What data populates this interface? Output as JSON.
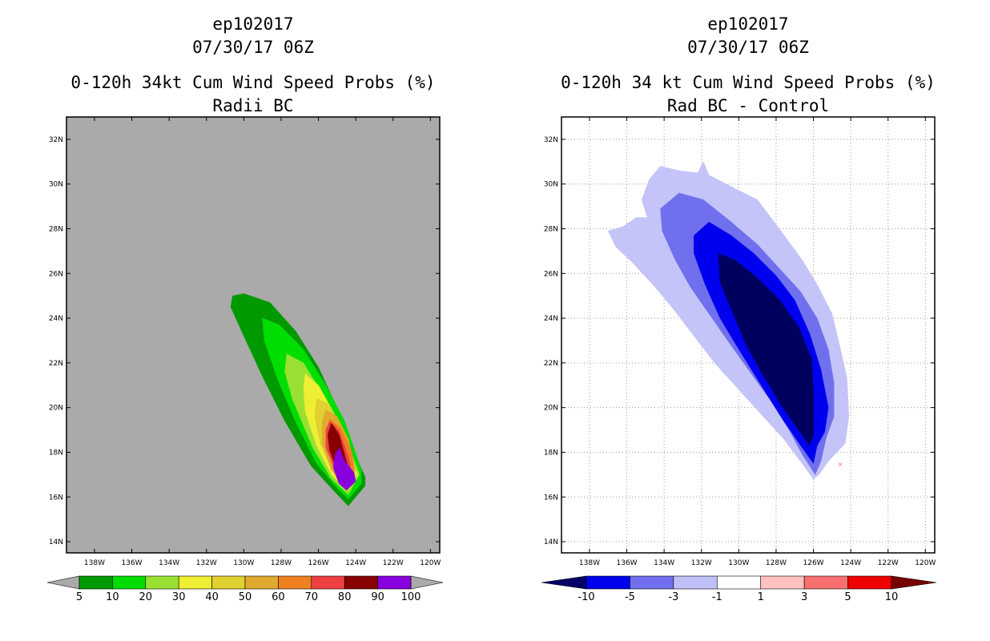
{
  "chart_data": [
    {
      "type": "heatmap",
      "storm_id": "ep102017",
      "datetime": "07/30/17 06Z",
      "title": "0-120h 34kt Cum Wind Speed Probs (%)",
      "subtitle": "Radii BC",
      "background_color": "#aaaaaa",
      "xlim": [
        -139.5,
        -119.5
      ],
      "ylim": [
        13.5,
        33.0
      ],
      "x_ticks": [
        -138,
        -136,
        -134,
        -132,
        -130,
        -128,
        -126,
        -124,
        -122,
        -120
      ],
      "x_tick_labels": [
        "138W",
        "136W",
        "134W",
        "132W",
        "130W",
        "128W",
        "126W",
        "124W",
        "122W",
        "120W"
      ],
      "y_ticks": [
        14,
        16,
        18,
        20,
        22,
        24,
        26,
        28,
        30,
        32
      ],
      "y_tick_labels": [
        "14N",
        "16N",
        "18N",
        "20N",
        "22N",
        "24N",
        "26N",
        "28N",
        "30N",
        "32N"
      ],
      "grid": false,
      "colorbar": {
        "labels": [
          "5",
          "10",
          "20",
          "30",
          "40",
          "50",
          "60",
          "70",
          "80",
          "90",
          "100"
        ],
        "colors": [
          "#009900",
          "#00dd00",
          "#99e033",
          "#eeee33",
          "#e0d030",
          "#e0aa30",
          "#ee8020",
          "#ee4040",
          "#880000",
          "#8800dd"
        ],
        "low_triangle_color": "#aaaaaa",
        "high_triangle_color": "#aaaaaa"
      },
      "contours": [
        {
          "level": 5,
          "color": "#009900",
          "points": [
            [
              -130.6,
              25.0
            ],
            [
              -130.0,
              25.1
            ],
            [
              -128.6,
              24.7
            ],
            [
              -127.2,
              23.4
            ],
            [
              -126.0,
              21.8
            ],
            [
              -125.0,
              20.0
            ],
            [
              -124.1,
              18.0
            ],
            [
              -123.5,
              16.9
            ],
            [
              -123.5,
              16.5
            ],
            [
              -124.4,
              15.6
            ],
            [
              -125.2,
              16.3
            ],
            [
              -126.4,
              17.4
            ],
            [
              -127.8,
              19.4
            ],
            [
              -129.0,
              21.4
            ],
            [
              -130.0,
              23.2
            ],
            [
              -130.7,
              24.5
            ]
          ]
        },
        {
          "level": 10,
          "color": "#00dd00",
          "points": [
            [
              -129.0,
              24.0
            ],
            [
              -128.1,
              23.7
            ],
            [
              -126.8,
              22.6
            ],
            [
              -125.6,
              21.0
            ],
            [
              -124.6,
              19.4
            ],
            [
              -123.7,
              17.2
            ],
            [
              -123.7,
              16.6
            ],
            [
              -124.4,
              15.9
            ],
            [
              -125.0,
              16.4
            ],
            [
              -126.1,
              17.5
            ],
            [
              -127.3,
              19.5
            ],
            [
              -128.2,
              21.3
            ],
            [
              -128.9,
              23.0
            ]
          ]
        },
        {
          "level": 20,
          "color": "#99e033",
          "points": [
            [
              -127.7,
              22.4
            ],
            [
              -126.8,
              22.0
            ],
            [
              -125.7,
              20.5
            ],
            [
              -124.6,
              18.8
            ],
            [
              -123.8,
              17.0
            ],
            [
              -124.4,
              16.1
            ],
            [
              -125.3,
              16.8
            ],
            [
              -126.3,
              18.2
            ],
            [
              -127.4,
              20.4
            ],
            [
              -127.8,
              21.6
            ]
          ]
        },
        {
          "level": 30,
          "color": "#eeee33",
          "points": [
            [
              -126.7,
              21.5
            ],
            [
              -126.0,
              21.0
            ],
            [
              -125.2,
              19.8
            ],
            [
              -124.4,
              18.4
            ],
            [
              -123.9,
              17.0
            ],
            [
              -124.5,
              16.3
            ],
            [
              -125.3,
              17.0
            ],
            [
              -126.1,
              18.3
            ],
            [
              -126.7,
              19.8
            ],
            [
              -126.8,
              20.9
            ]
          ]
        },
        {
          "level": 40,
          "color": "#e0d030",
          "points": [
            [
              -126.1,
              20.4
            ],
            [
              -125.5,
              20.2
            ],
            [
              -124.8,
              19.2
            ],
            [
              -124.1,
              17.6
            ],
            [
              -124.0,
              16.9
            ],
            [
              -124.6,
              16.4
            ],
            [
              -125.3,
              17.2
            ],
            [
              -125.9,
              18.4
            ],
            [
              -126.2,
              19.6
            ]
          ]
        },
        {
          "level": 50,
          "color": "#e0aa30",
          "points": [
            [
              -125.6,
              19.9
            ],
            [
              -125.0,
              19.6
            ],
            [
              -124.4,
              18.6
            ],
            [
              -124.0,
              17.2
            ],
            [
              -124.6,
              16.5
            ],
            [
              -125.3,
              17.2
            ],
            [
              -125.8,
              18.4
            ],
            [
              -125.8,
              19.4
            ]
          ]
        },
        {
          "level": 60,
          "color": "#ee8020",
          "points": [
            [
              -125.4,
              19.5
            ],
            [
              -124.8,
              19.1
            ],
            [
              -124.2,
              18.0
            ],
            [
              -124.1,
              17.0
            ],
            [
              -124.6,
              16.6
            ],
            [
              -125.2,
              17.3
            ],
            [
              -125.6,
              18.4
            ]
          ]
        },
        {
          "level": 70,
          "color": "#ee4040",
          "points": [
            [
              -125.4,
              19.4
            ],
            [
              -124.9,
              19.0
            ],
            [
              -124.4,
              17.8
            ],
            [
              -124.2,
              17.0
            ],
            [
              -124.6,
              16.6
            ],
            [
              -125.1,
              17.2
            ],
            [
              -125.6,
              18.2
            ],
            [
              -125.6,
              19.0
            ]
          ]
        },
        {
          "level": 80,
          "color": "#880000",
          "points": [
            [
              -125.3,
              19.3
            ],
            [
              -124.9,
              18.8
            ],
            [
              -124.6,
              17.9
            ],
            [
              -124.3,
              17.0
            ],
            [
              -124.6,
              16.7
            ],
            [
              -125.0,
              17.2
            ],
            [
              -125.4,
              18.1
            ],
            [
              -125.5,
              18.8
            ]
          ]
        },
        {
          "level": 90,
          "color": "#8800dd",
          "points": [
            [
              -124.9,
              18.2
            ],
            [
              -124.6,
              17.6
            ],
            [
              -124.1,
              17.1
            ],
            [
              -124.0,
              16.7
            ],
            [
              -124.5,
              16.3
            ],
            [
              -124.9,
              16.6
            ],
            [
              -125.2,
              17.3
            ],
            [
              -125.1,
              17.9
            ]
          ]
        }
      ]
    },
    {
      "type": "heatmap",
      "storm_id": "ep102017",
      "datetime": "07/30/17 06Z",
      "title": "0-120h 34 kt Cum Wind Speed Probs (%)",
      "subtitle": "Rad BC - Control",
      "background_color": "#ffffff",
      "xlim": [
        -139.5,
        -119.5
      ],
      "ylim": [
        13.5,
        33.0
      ],
      "x_ticks": [
        -138,
        -136,
        -134,
        -132,
        -130,
        -128,
        -126,
        -124,
        -122,
        -120
      ],
      "x_tick_labels": [
        "138W",
        "136W",
        "134W",
        "132W",
        "130W",
        "128W",
        "126W",
        "124W",
        "122W",
        "120W"
      ],
      "y_ticks": [
        14,
        16,
        18,
        20,
        22,
        24,
        26,
        28,
        30,
        32
      ],
      "y_tick_labels": [
        "14N",
        "16N",
        "18N",
        "20N",
        "22N",
        "24N",
        "26N",
        "28N",
        "30N",
        "32N"
      ],
      "grid": true,
      "colorbar": {
        "labels": [
          "-10",
          "-5",
          "-3",
          "-1",
          "1",
          "3",
          "5",
          "10"
        ],
        "colors": [
          "#0000ee",
          "#7070ee",
          "#c0c0f8",
          "#ffffff",
          "#ffc0c0",
          "#f87070",
          "#ee0000"
        ],
        "low_triangle_color": "#000066",
        "high_triangle_color": "#770000"
      },
      "contours": [
        {
          "level": -1,
          "color": "#c4c4f8",
          "points": [
            [
              -137.0,
              27.9
            ],
            [
              -136.2,
              28.1
            ],
            [
              -135.5,
              28.5
            ],
            [
              -134.9,
              28.5
            ],
            [
              -135.2,
              29.3
            ],
            [
              -134.8,
              30.2
            ],
            [
              -134.2,
              30.8
            ],
            [
              -133.2,
              30.6
            ],
            [
              -132.2,
              30.5
            ],
            [
              -131.9,
              31.0
            ],
            [
              -131.6,
              30.4
            ],
            [
              -130.2,
              29.8
            ],
            [
              -129.0,
              29.3
            ],
            [
              -128.1,
              28.3
            ],
            [
              -127.3,
              27.4
            ],
            [
              -126.6,
              26.6
            ],
            [
              -125.8,
              25.5
            ],
            [
              -125.0,
              24.2
            ],
            [
              -124.6,
              22.8
            ],
            [
              -124.2,
              21.3
            ],
            [
              -124.1,
              19.6
            ],
            [
              -124.3,
              18.4
            ],
            [
              -125.2,
              17.6
            ],
            [
              -125.7,
              17.0
            ],
            [
              -126.0,
              16.8
            ],
            [
              -126.7,
              17.6
            ],
            [
              -127.6,
              18.6
            ],
            [
              -128.8,
              19.7
            ],
            [
              -130.0,
              20.8
            ],
            [
              -131.3,
              22.0
            ],
            [
              -132.4,
              23.2
            ],
            [
              -133.5,
              24.4
            ],
            [
              -134.5,
              25.4
            ],
            [
              -135.6,
              26.4
            ],
            [
              -136.6,
              27.2
            ]
          ]
        },
        {
          "level": -3,
          "color": "#7070ee",
          "points": [
            [
              -134.2,
              28.9
            ],
            [
              -133.2,
              29.6
            ],
            [
              -131.9,
              29.3
            ],
            [
              -130.4,
              28.3
            ],
            [
              -129.0,
              27.3
            ],
            [
              -127.8,
              26.2
            ],
            [
              -126.7,
              25.2
            ],
            [
              -125.8,
              24.0
            ],
            [
              -125.2,
              22.6
            ],
            [
              -124.9,
              21.1
            ],
            [
              -124.9,
              19.6
            ],
            [
              -125.3,
              18.7
            ],
            [
              -125.6,
              17.6
            ],
            [
              -125.9,
              17.0
            ],
            [
              -126.6,
              17.9
            ],
            [
              -127.3,
              19.0
            ],
            [
              -128.2,
              20.2
            ],
            [
              -129.4,
              21.6
            ],
            [
              -130.6,
              23.0
            ],
            [
              -131.6,
              24.2
            ],
            [
              -132.6,
              25.4
            ],
            [
              -133.4,
              26.6
            ],
            [
              -134.1,
              27.9
            ]
          ]
        },
        {
          "level": -5,
          "color": "#0000ee",
          "points": [
            [
              -132.4,
              27.7
            ],
            [
              -131.6,
              28.3
            ],
            [
              -130.4,
              27.7
            ],
            [
              -129.2,
              26.9
            ],
            [
              -128.0,
              25.9
            ],
            [
              -127.0,
              24.8
            ],
            [
              -126.2,
              23.3
            ],
            [
              -125.6,
              21.7
            ],
            [
              -125.2,
              20.0
            ],
            [
              -125.4,
              18.9
            ],
            [
              -125.8,
              18.3
            ],
            [
              -126.0,
              17.5
            ],
            [
              -126.6,
              18.2
            ],
            [
              -127.6,
              19.4
            ],
            [
              -128.8,
              21.0
            ],
            [
              -130.0,
              22.6
            ],
            [
              -131.0,
              24.0
            ],
            [
              -131.8,
              25.5
            ],
            [
              -132.4,
              26.9
            ]
          ]
        },
        {
          "level": -10,
          "color": "#00005e",
          "points": [
            [
              -131.1,
              26.9
            ],
            [
              -130.2,
              26.6
            ],
            [
              -129.0,
              25.8
            ],
            [
              -127.8,
              24.8
            ],
            [
              -126.8,
              23.6
            ],
            [
              -126.1,
              22.2
            ],
            [
              -126.0,
              20.8
            ],
            [
              -126.0,
              18.8
            ],
            [
              -126.2,
              18.3
            ],
            [
              -126.8,
              19.0
            ],
            [
              -127.8,
              20.2
            ],
            [
              -128.8,
              21.6
            ],
            [
              -129.6,
              22.8
            ],
            [
              -130.4,
              24.4
            ],
            [
              -131.0,
              25.6
            ]
          ]
        }
      ]
    }
  ]
}
